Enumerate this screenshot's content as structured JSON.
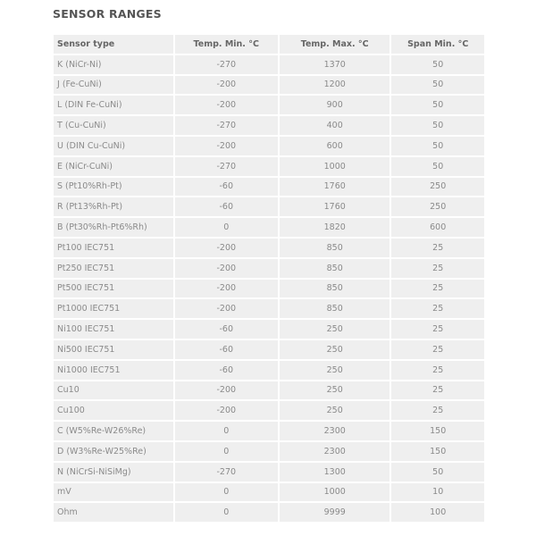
{
  "title": "SENSOR RANGES",
  "headers": [
    "Sensor type",
    "Temp. Min. °C",
    "Temp. Max. °C",
    "Span Min. °C"
  ],
  "rows": [
    [
      "K (NiCr-Ni)",
      "-270",
      "1370",
      "50"
    ],
    [
      "J (Fe-CuNi)",
      "-200",
      "1200",
      "50"
    ],
    [
      "L (DIN Fe-CuNi)",
      "-200",
      "900",
      "50"
    ],
    [
      "T (Cu-CuNi)",
      "-270",
      "400",
      "50"
    ],
    [
      "U (DIN Cu-CuNi)",
      "-200",
      "600",
      "50"
    ],
    [
      "E (NiCr-CuNi)",
      "-270",
      "1000",
      "50"
    ],
    [
      "S (Pt10%Rh-Pt)",
      "-60",
      "1760",
      "250"
    ],
    [
      "R (Pt13%Rh-Pt)",
      "-60",
      "1760",
      "250"
    ],
    [
      "B (Pt30%Rh-Pt6%Rh)",
      "0",
      "1820",
      "600"
    ],
    [
      "Pt100 IEC751",
      "-200",
      "850",
      "25"
    ],
    [
      "Pt250 IEC751",
      "-200",
      "850",
      "25"
    ],
    [
      "Pt500 IEC751",
      "-200",
      "850",
      "25"
    ],
    [
      "Pt1000 IEC751",
      "-200",
      "850",
      "25"
    ],
    [
      "Ni100 IEC751",
      "-60",
      "250",
      "25"
    ],
    [
      "Ni500 IEC751",
      "-60",
      "250",
      "25"
    ],
    [
      "Ni1000 IEC751",
      "-60",
      "250",
      "25"
    ],
    [
      "Cu10",
      "-200",
      "250",
      "25"
    ],
    [
      "Cu100",
      "-200",
      "250",
      "25"
    ],
    [
      "C (W5%Re-W26%Re)",
      "0",
      "2300",
      "150"
    ],
    [
      "D (W3%Re-W25%Re)",
      "0",
      "2300",
      "150"
    ],
    [
      "N (NiCrSi-NiSiMg)",
      "-270",
      "1300",
      "50"
    ],
    [
      "mV",
      "0",
      "1000",
      "10"
    ],
    [
      "Ohm",
      "0",
      "9999",
      "100"
    ]
  ]
}
